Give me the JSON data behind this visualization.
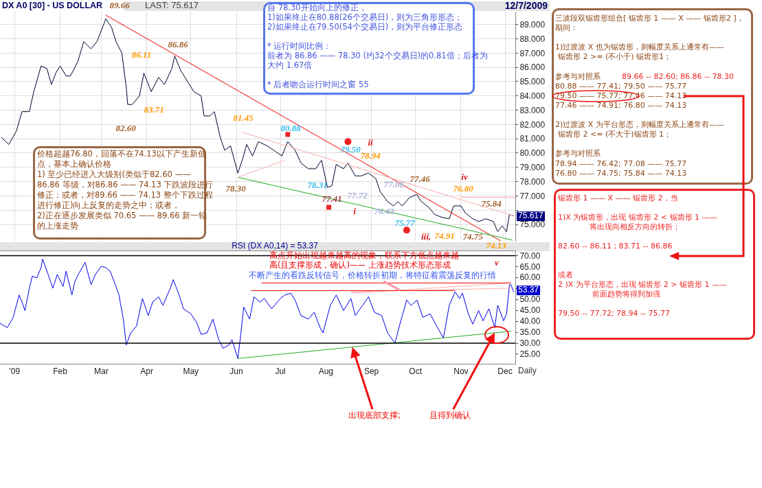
{
  "chart_data": [
    {
      "type": "line",
      "title": "DX A0 [30] - US DOLLAR",
      "xlim": [
        "2008-12-22",
        "2009-12-08"
      ],
      "xticks": [
        {
          "value": "2009-01-01",
          "label": null
        },
        {
          "value": "2009-02-01",
          "label": null
        },
        {
          "value": "2009-03-01",
          "label": null
        },
        {
          "value": "2009-04-01",
          "label": null
        },
        {
          "value": "2009-05-01",
          "label": null
        },
        {
          "value": "2009-06-01",
          "label": null
        },
        {
          "value": "2009-07-01",
          "label": null
        },
        {
          "value": "2009-08-01",
          "label": null
        },
        {
          "value": "2009-09-01",
          "label": null
        },
        {
          "value": "2009-10-01",
          "label": null
        },
        {
          "value": "2009-11-01",
          "label": null
        },
        {
          "value": "2009-12-01",
          "label": null
        }
      ],
      "ylim": [
        73.8,
        89.9
      ],
      "yticks": [
        {
          "value": 75,
          "label": "75.000"
        },
        {
          "value": 76,
          "label": null
        },
        {
          "value": 77,
          "label": "77.000"
        },
        {
          "value": 78,
          "label": "78.000"
        },
        {
          "value": 79,
          "label": "79.000"
        },
        {
          "value": 80,
          "label": "80.000"
        },
        {
          "value": 81,
          "label": "81.000"
        },
        {
          "value": 82,
          "label": "82.000"
        },
        {
          "value": 83,
          "label": "83.000"
        },
        {
          "value": 84,
          "label": "84.000"
        },
        {
          "value": 85,
          "label": "85.000"
        },
        {
          "value": 86,
          "label": "86.000"
        },
        {
          "value": 87,
          "label": "87.000"
        },
        {
          "value": 88,
          "label": "88.000"
        },
        {
          "value": 89,
          "label": "89.000"
        }
      ],
      "grid": true,
      "tick_labels": "y",
      "series": [
        {
          "color": "#000033",
          "x": [
            "2008-12-23",
            "2008-12-28",
            "2009-01-02",
            "2009-01-06",
            "2009-01-11",
            "2009-01-14",
            "2009-01-19",
            "2009-01-23",
            "2009-01-26",
            "2009-01-29",
            "2009-02-01",
            "2009-02-05",
            "2009-02-08",
            "2009-02-13",
            "2009-02-17",
            "2009-02-22",
            "2009-02-26",
            "2009-03-03",
            "2009-03-04",
            "2009-03-08",
            "2009-03-11",
            "2009-03-15",
            "2009-03-18",
            "2009-03-19",
            "2009-03-22",
            "2009-03-27",
            "2009-03-30",
            "2009-04-04",
            "2009-04-09",
            "2009-04-13",
            "2009-04-18",
            "2009-04-20",
            "2009-04-24",
            "2009-04-27",
            "2009-04-30",
            "2009-05-03",
            "2009-05-08",
            "2009-05-10",
            "2009-05-14",
            "2009-05-17",
            "2009-05-21",
            "2009-05-24",
            "2009-05-28",
            "2009-06-02",
            "2009-06-05",
            "2009-06-08",
            "2009-06-12",
            "2009-06-16",
            "2009-06-22",
            "2009-06-25",
            "2009-07-02",
            "2009-07-06",
            "2009-07-11",
            "2009-07-15",
            "2009-07-20",
            "2009-07-25",
            "2009-07-29",
            "2009-08-02",
            "2009-08-05",
            "2009-08-08",
            "2009-08-13",
            "2009-08-16",
            "2009-08-21",
            "2009-08-25",
            "2009-08-30",
            "2009-09-04",
            "2009-09-07",
            "2009-09-12",
            "2009-09-16",
            "2009-09-19",
            "2009-09-22",
            "2009-09-27",
            "2009-10-02",
            "2009-10-05",
            "2009-10-10",
            "2009-10-14",
            "2009-10-19",
            "2009-10-24",
            "2009-10-27",
            "2009-11-01",
            "2009-11-04",
            "2009-11-09",
            "2009-11-13",
            "2009-11-18",
            "2009-11-23",
            "2009-11-26",
            "2009-11-29",
            "2009-12-02",
            "2009-12-04",
            "2009-12-07"
          ],
          "values": [
            81.1,
            80.6,
            81.5,
            82.9,
            82.9,
            84.3,
            86.1,
            85.9,
            84.8,
            85.6,
            86.1,
            85.4,
            85.4,
            86.4,
            87.8,
            87.3,
            87.8,
            89.1,
            89.4,
            88.8,
            87.8,
            87.0,
            84.6,
            83.4,
            83.4,
            84.0,
            85.6,
            84.3,
            85.3,
            84.8,
            85.9,
            86.8,
            85.8,
            85.3,
            84.8,
            84.3,
            84.0,
            82.6,
            82.6,
            82.9,
            81.1,
            80.2,
            80.5,
            78.6,
            79.5,
            80.6,
            79.8,
            80.8,
            80.5,
            80.3,
            79.8,
            80.8,
            80.2,
            79.3,
            78.9,
            78.9,
            79.5,
            77.6,
            77.7,
            79.2,
            78.9,
            79.3,
            78.4,
            78.4,
            78.6,
            78.2,
            77.3,
            76.6,
            76.3,
            76.6,
            76.3,
            76.9,
            77.1,
            76.6,
            76.2,
            75.7,
            75.5,
            75.4,
            76.3,
            76.3,
            75.8,
            75.4,
            75.2,
            75.4,
            75.2,
            74.5,
            74.9,
            74.5,
            75.7,
            75.6
          ]
        },
        {
          "type": "line",
          "color": "#ee0000",
          "x": [
            "2009-03-04",
            "2009-11-28"
          ],
          "values": [
            89.66,
            73.85
          ]
        },
        {
          "type": "line",
          "color": "#22aa22",
          "x": [
            "2009-06-02",
            "2009-12-06"
          ],
          "values": [
            78.3,
            73.9
          ]
        },
        {
          "type": "line",
          "color": "#ffaaaa",
          "x": [
            "2009-06-05",
            "2009-12-07"
          ],
          "values": [
            81.45,
            75.6
          ]
        },
        {
          "type": "line",
          "color": "#ffaaaa",
          "x": [
            "2009-06-02",
            "2009-07-04"
          ],
          "values": [
            78.3,
            79.5
          ]
        },
        {
          "type": "line",
          "color": "#ffaaaa",
          "x": [
            "2009-11-01",
            "2009-12-08"
          ],
          "values": [
            76.9,
            76.9
          ]
        },
        {
          "type": "scatter",
          "marker": "square",
          "color": "#ee2222",
          "x": [
            "2009-07-06",
            "2009-08-03"
          ],
          "values": [
            81.3,
            76.2
          ]
        },
        {
          "type": "scatter",
          "marker": "circle",
          "color": "#ee2222",
          "x": [
            "2009-08-16",
            "2009-09-25"
          ],
          "values": [
            80.8,
            74.6
          ]
        }
      ],
      "annotations": [
        "LAST: 75.617",
        "12/7/2009",
        "自 78.30开始向上的修正，",
        "1)如果终止在80.88(26个交易日)，则为三角形形态；",
        "2)如果终止在79.50(54个交易日)，则为平台修正形态",
        "* 运行时间比例：",
        "前者为 86.86 —— 78.30 (约32个交易日)的0.81倍；后者为",
        "大约 1.67倍",
        "* 后者吻合运行时间之窗 55",
        "价格超越76.80，回落不在74.13以下产生新低",
        "点，基本上确认价格",
        "1) 至少已经进入大级别(类似于82.60 ——",
        "86.86 等级，对86.86 —— 74.13 下跌波段进行",
        "修正；或者，对89.66 —— 74.13 整个下跌过程",
        "进行修正)向上反复的走势之中；或者，",
        "2)正在逐步发展类似 70.65 —— 89.66 新一轮",
        "的上涨走势",
        "三波段双锯齿形组合[ 锯齿形 1 —— X —— 锯齿形2 ]，",
        "期间：",
        "1)过渡波 X 也为锯齿形，则幅度关系上通常有——",
        "锯齿形 2 >= (不小于) 锯齿形1；",
        "参考与对照系",
        "89.66 -- 82.60;  86.86 -- 78.30",
        "80.88 —— 77.41;  79.50 —— 75.77",
        "79.50 —— 75.77;  77.46 —— 74.13",
        "77.46 —— 74.91;  76.80 —— 74.13",
        "2)过渡波 X 为平台形态，则幅度关系上通常有——",
        "锯齿形 2 <= (不大于)锯齿形 1；",
        "参考与对照系",
        "78.94 —— 76.42;  77.08 —— 75.77",
        "76.80 —— 74.75;  75.84 —— 74.13",
        "锯齿形 1 —— X —— 锯齿形 2，当",
        "1)X 为锯齿形，出现 锯齿形 2 < 锯齿形 1 ——",
        "将出现向相反方向的转折；",
        "82.60 -- 86.11 ;   83.71 -- 86.86",
        "或者",
        "2 )X 为平台形态，出现 锯齿形 2 > 锯齿形 1 ——",
        "前面趋势将得到加强",
        "79.50 -- 77.72; 78.94 -- 75.77",
        "75.617",
        "89.66",
        "86.11",
        "86.86",
        "83.71",
        "82.60",
        "81.45",
        "80.88",
        "78.30",
        "79.50",
        "78.94",
        "78.31",
        "77.41",
        "77.72",
        "77.08",
        "77.46",
        "76.43",
        "75.77",
        "74.91",
        "76.80",
        "75.84",
        "74.75",
        "74.13",
        "ii",
        "i",
        "iii,",
        "iv",
        "v"
      ]
    },
    {
      "type": "line",
      "title": "RSI (DX A0,14) = 53.37",
      "xlim": [
        "2008-12-22",
        "2009-12-08"
      ],
      "xticks": [
        {
          "value": "2009-01-01",
          "label": "'09"
        },
        {
          "value": "2009-02-01",
          "label": "Feb"
        },
        {
          "value": "2009-03-01",
          "label": "Mar"
        },
        {
          "value": "2009-04-01",
          "label": "Apr"
        },
        {
          "value": "2009-05-01",
          "label": "May"
        },
        {
          "value": "2009-06-01",
          "label": "Jun"
        },
        {
          "value": "2009-07-01",
          "label": "Jul"
        },
        {
          "value": "2009-08-01",
          "label": "Aug"
        },
        {
          "value": "2009-09-01",
          "label": "Sep"
        },
        {
          "value": "2009-10-01",
          "label": "Oct"
        },
        {
          "value": "2009-11-01",
          "label": "Nov"
        },
        {
          "value": "2009-12-01",
          "label": "Dec"
        }
      ],
      "ylim": [
        20.6,
        72
      ],
      "yticks": [
        {
          "value": 25,
          "label": "25.00"
        },
        {
          "value": 30,
          "label": "30.00"
        },
        {
          "value": 35,
          "label": "35.00"
        },
        {
          "value": 40,
          "label": "40.00"
        },
        {
          "value": 45,
          "label": "45.00"
        },
        {
          "value": 50,
          "label": "50.00"
        },
        {
          "value": 55,
          "label": null
        },
        {
          "value": 60,
          "label": "60.00"
        },
        {
          "value": 65,
          "label": "65.00"
        },
        {
          "value": 70,
          "label": "70.00"
        }
      ],
      "grid": false,
      "ref_lines": [
        {
          "axis": "y",
          "value": 70,
          "color": "#000000"
        },
        {
          "axis": "y",
          "value": 30,
          "color": "#000000"
        }
      ],
      "series": [
        {
          "color": "#0000ee",
          "x": [
            "2008-12-22",
            "2008-12-27",
            "2008-12-31",
            "2009-01-04",
            "2009-01-06",
            "2009-01-08",
            "2009-01-11",
            "2009-01-13",
            "2009-01-16",
            "2009-01-19",
            "2009-01-20",
            "2009-01-23",
            "2009-01-27",
            "2009-01-30",
            "2009-02-03",
            "2009-02-05",
            "2009-02-09",
            "2009-02-11",
            "2009-02-14",
            "2009-02-18",
            "2009-02-22",
            "2009-02-25",
            "2009-03-01",
            "2009-03-04",
            "2009-03-07",
            "2009-03-11",
            "2009-03-13",
            "2009-03-16",
            "2009-03-18",
            "2009-03-21",
            "2009-03-25",
            "2009-03-29",
            "2009-04-02",
            "2009-04-05",
            "2009-04-09",
            "2009-04-12",
            "2009-04-17",
            "2009-04-19",
            "2009-04-23",
            "2009-04-26",
            "2009-05-01",
            "2009-05-05",
            "2009-05-08",
            "2009-05-12",
            "2009-05-16",
            "2009-05-20",
            "2009-05-23",
            "2009-05-27",
            "2009-05-29",
            "2009-06-02",
            "2009-06-04",
            "2009-06-06",
            "2009-06-10",
            "2009-06-13",
            "2009-06-17",
            "2009-06-20",
            "2009-06-25",
            "2009-07-01",
            "2009-07-04",
            "2009-07-08",
            "2009-07-11",
            "2009-07-15",
            "2009-07-20",
            "2009-07-24",
            "2009-07-28",
            "2009-07-30",
            "2009-08-04",
            "2009-08-08",
            "2009-08-13",
            "2009-08-18",
            "2009-08-21",
            "2009-08-26",
            "2009-08-30",
            "2009-09-03",
            "2009-09-08",
            "2009-09-12",
            "2009-09-17",
            "2009-09-20",
            "2009-09-25",
            "2009-09-28",
            "2009-10-02",
            "2009-10-06",
            "2009-10-11",
            "2009-10-16",
            "2009-10-20",
            "2009-10-24",
            "2009-10-28",
            "2009-10-31",
            "2009-11-02",
            "2009-11-06",
            "2009-11-09",
            "2009-11-13",
            "2009-11-16",
            "2009-11-20",
            "2009-11-24",
            "2009-11-26",
            "2009-11-30",
            "2009-12-02",
            "2009-12-04",
            "2009-12-05",
            "2009-12-07"
          ],
          "values": [
            39.1,
            37.1,
            41.8,
            52.0,
            48.8,
            44.9,
            55.1,
            60.6,
            59.8,
            64.5,
            68.4,
            62.9,
            55.1,
            61.4,
            55.9,
            62.9,
            52.0,
            58.2,
            62.2,
            66.9,
            56.7,
            61.4,
            65.1,
            64.5,
            62.9,
            55.9,
            52.0,
            41.0,
            29.2,
            34.7,
            37.8,
            50.4,
            42.6,
            48.8,
            51.2,
            47.3,
            55.1,
            59.0,
            52.0,
            45.7,
            43.4,
            39.4,
            34.0,
            34.7,
            41.0,
            31.6,
            27.7,
            29.2,
            31.6,
            23.0,
            34.0,
            46.5,
            41.0,
            51.2,
            48.8,
            50.4,
            45.7,
            50.4,
            52.0,
            52.8,
            49.7,
            42.6,
            41.0,
            44.1,
            37.1,
            34.7,
            47.3,
            52.0,
            44.9,
            50.4,
            42.6,
            47.3,
            51.2,
            44.1,
            42.6,
            34.7,
            30.0,
            37.8,
            49.7,
            47.3,
            49.7,
            41.8,
            43.4,
            37.1,
            32.4,
            47.3,
            53.5,
            50.4,
            52.8,
            43.4,
            38.7,
            44.9,
            40.2,
            45.7,
            37.1,
            47.3,
            40.2,
            43.4,
            56.7,
            56.7,
            53.4
          ]
        },
        {
          "type": "line",
          "color": "#ffaaaa",
          "x": [
            "2009-08-18",
            "2009-12-05"
          ],
          "values": [
            52.8,
            57.5
          ]
        },
        {
          "type": "line",
          "color": "#ffaaaa",
          "x": [
            "2009-08-18",
            "2009-12-05"
          ],
          "values": [
            53.5,
            55.1
          ]
        },
        {
          "type": "line",
          "color": "#ee0000",
          "x": [
            "2009-06-18",
            "2009-12-05"
          ],
          "values": [
            57.5,
            57.5
          ]
        },
        {
          "type": "line",
          "color": "#ee0000",
          "x": [
            "2009-06-11",
            "2009-10-28"
          ],
          "values": [
            54,
            54
          ]
        },
        {
          "type": "line",
          "color": "#22aa22",
          "x": [
            "2009-06-02",
            "2009-12-05"
          ],
          "values": [
            23,
            35.5
          ]
        }
      ],
      "annotations": [
        "高点开始出现越来越高的现象，联系下方低点越来越",
        "高(且支撑形成，确认)—— 上涨趋势技术形态形成",
        {
          "text": "不断产生的看跌反转信号，价格转折初期，将特征着震荡反复的行情",
          "x": "2009-09-21",
          "y": 54
        },
        {
          "text": "出现底部支撑;",
          "x": "2009-08-19",
          "y": 28.2
        },
        {
          "text": "且得到确认",
          "x": "2009-11-24",
          "y": 34.8
        },
        "53.37",
        "Daily"
      ]
    }
  ]
}
